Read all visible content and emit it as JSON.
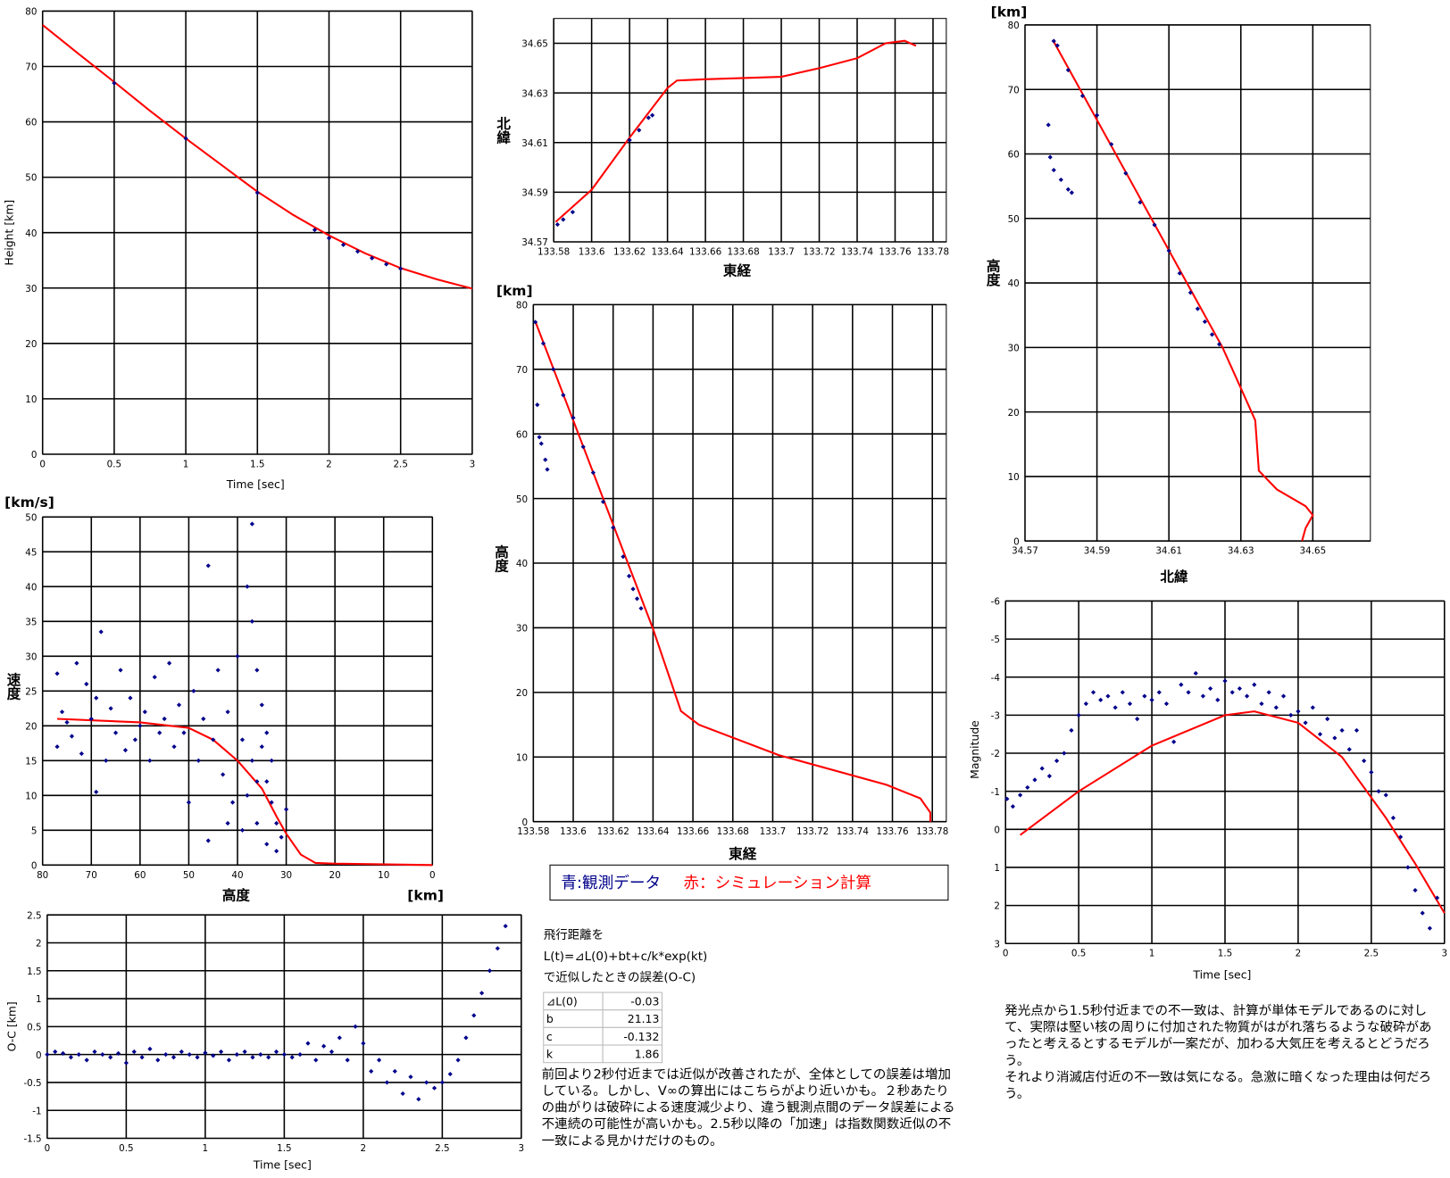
{
  "chart_data": [
    {
      "type": "scatter",
      "xlabel": "Time [sec]",
      "ylabel": "Height [km]",
      "xlim": [
        0,
        3
      ],
      "ylim": [
        0,
        80
      ],
      "xticks": [
        0,
        0.5,
        1,
        1.5,
        2,
        2.5,
        3
      ],
      "yticks": [
        0,
        10,
        20,
        30,
        40,
        50,
        60,
        70,
        80
      ],
      "grid": true,
      "series": [
        {
          "color": "#ff0000",
          "mode": "line",
          "x": [
            0,
            0.25,
            0.5,
            0.75,
            1,
            1.25,
            1.5,
            1.75,
            2,
            2.25,
            2.5,
            2.75,
            3
          ],
          "values": [
            77.5,
            72.3,
            67.2,
            62,
            57,
            52.2,
            47.4,
            43.2,
            39.5,
            36.3,
            33.6,
            31.6,
            29.9
          ]
        },
        {
          "color": "#00008b",
          "mode": "points",
          "x": [
            0.5,
            1,
            1.5,
            1.9,
            2,
            2.1,
            2.2,
            2.3,
            2.4,
            2.5
          ],
          "values": [
            67,
            57,
            47.2,
            40.5,
            39,
            37.8,
            36.6,
            35.4,
            34.3,
            33.5
          ]
        }
      ]
    },
    {
      "type": "scatter",
      "xlabel": "東経",
      "ylabel": "北緯",
      "xlim": [
        133.58,
        133.787
      ],
      "ylim": [
        34.57,
        34.66
      ],
      "xticks": [
        133.58,
        133.6,
        133.62,
        133.64,
        133.66,
        133.68,
        133.7,
        133.72,
        133.74,
        133.76,
        133.78
      ],
      "yticks": [
        34.57,
        34.59,
        34.61,
        34.63,
        34.65
      ],
      "grid": true,
      "series": [
        {
          "color": "#ff0000",
          "mode": "line",
          "x": [
            133.581,
            133.6,
            133.62,
            133.63,
            133.64,
            133.645,
            133.66,
            133.7,
            133.72,
            133.74,
            133.755,
            133.765,
            133.771
          ],
          "values": [
            34.578,
            34.591,
            34.612,
            34.622,
            34.632,
            34.635,
            34.6355,
            34.6365,
            34.64,
            34.644,
            34.65,
            34.651,
            34.649
          ]
        },
        {
          "color": "#00008b",
          "mode": "points",
          "x": [
            133.582,
            133.585,
            133.59,
            133.62,
            133.625,
            133.63,
            133.632
          ],
          "values": [
            34.577,
            34.579,
            34.582,
            34.611,
            34.615,
            34.62,
            34.621
          ]
        }
      ]
    },
    {
      "type": "scatter",
      "xlabel": "北緯",
      "ylabel": "高度",
      "yunit": "[km]",
      "xlim": [
        34.57,
        34.666
      ],
      "ylim": [
        0,
        80
      ],
      "xticks": [
        34.57,
        34.59,
        34.61,
        34.63,
        34.65
      ],
      "yticks": [
        0,
        10,
        20,
        30,
        40,
        50,
        60,
        70,
        80
      ],
      "grid": true,
      "series": [
        {
          "color": "#ff0000",
          "mode": "line",
          "x": [
            34.578,
            34.6249,
            34.63,
            34.634,
            34.635,
            34.64,
            34.648,
            34.65,
            34.648,
            34.647
          ],
          "values": [
            77.4,
            30,
            23.7,
            18.7,
            10.9,
            8,
            5.4,
            4,
            2,
            0
          ]
        },
        {
          "color": "#00008b",
          "mode": "points",
          "x": [
            34.578,
            34.579,
            34.582,
            34.586,
            34.59,
            34.594,
            34.598,
            34.602,
            34.606,
            34.61,
            34.613,
            34.616,
            34.618,
            34.62,
            34.622,
            34.624,
            34.5765,
            34.577,
            34.578,
            34.58,
            34.582,
            34.583
          ],
          "values": [
            77.5,
            76.8,
            73,
            69,
            66,
            61.5,
            57,
            52.5,
            49,
            45,
            41.5,
            38.5,
            36,
            34,
            32,
            30.5,
            64.5,
            59.5,
            57.5,
            56,
            54.5,
            54
          ]
        }
      ]
    },
    {
      "type": "scatter",
      "xlabel": "東経",
      "ylabel": "高度",
      "yunit": "[km]",
      "xlim": [
        133.58,
        133.787
      ],
      "ylim": [
        0,
        80
      ],
      "xticks": [
        133.58,
        133.6,
        133.62,
        133.64,
        133.66,
        133.68,
        133.7,
        133.72,
        133.74,
        133.76,
        133.78
      ],
      "yticks": [
        0,
        10,
        20,
        30,
        40,
        50,
        60,
        70,
        80
      ],
      "grid": true,
      "series": [
        {
          "color": "#ff0000",
          "mode": "line",
          "x": [
            133.581,
            133.6398,
            133.654,
            133.663,
            133.703,
            133.757,
            133.774,
            133.779,
            133.779
          ],
          "values": [
            77.4,
            30,
            17.1,
            15,
            10.3,
            5.7,
            3.6,
            1.4,
            0
          ]
        },
        {
          "color": "#00008b",
          "mode": "points",
          "x": [
            133.581,
            133.585,
            133.59,
            133.595,
            133.6,
            133.605,
            133.61,
            133.615,
            133.62,
            133.625,
            133.628,
            133.63,
            133.632,
            133.634,
            133.582,
            133.583,
            133.584,
            133.586,
            133.587
          ],
          "values": [
            77.3,
            74,
            70,
            66,
            62.5,
            58,
            54,
            49.5,
            45.5,
            41,
            38,
            36,
            34.5,
            33,
            64.5,
            59.5,
            58.5,
            56,
            54.5
          ]
        }
      ]
    },
    {
      "type": "scatter",
      "xlabel": "高度",
      "xunit": "[km]",
      "ylabel": "速度",
      "yunit": "[km/s]",
      "xlim": [
        80,
        0
      ],
      "ylim": [
        0,
        50
      ],
      "xticks": [
        80,
        70,
        60,
        50,
        40,
        30,
        20,
        10,
        0
      ],
      "yticks": [
        0,
        5,
        10,
        15,
        20,
        25,
        30,
        35,
        40,
        45,
        50
      ],
      "grid": true,
      "series": [
        {
          "color": "#ff0000",
          "mode": "line",
          "x": [
            77,
            60,
            50,
            45,
            40,
            35,
            32,
            30,
            27,
            24,
            20,
            0
          ],
          "values": [
            21,
            20.5,
            19.7,
            18,
            15,
            11,
            7,
            4.5,
            1.5,
            0.3,
            0.2,
            0
          ]
        },
        {
          "color": "#00008b",
          "mode": "points",
          "x": [
            77,
            77,
            76,
            75,
            74,
            73,
            72,
            71,
            70,
            69,
            69,
            68,
            67,
            66,
            65,
            64,
            63,
            62,
            61,
            60,
            59,
            58,
            57,
            56,
            55,
            54,
            53,
            52,
            51,
            50,
            49,
            48,
            47,
            46,
            46,
            45,
            44,
            43,
            42,
            41,
            40,
            39,
            38,
            38,
            37,
            37,
            36,
            36,
            35,
            34,
            34,
            33,
            32,
            31,
            30,
            33,
            35,
            39,
            42,
            37,
            36,
            34,
            32
          ],
          "values": [
            27.5,
            17,
            22,
            20.5,
            18.5,
            29,
            16,
            26,
            21,
            24,
            10.5,
            33.5,
            15,
            22.5,
            19,
            28,
            16.5,
            24,
            18,
            20,
            22,
            15,
            27,
            19,
            21,
            29,
            17,
            23,
            19,
            9,
            25,
            15,
            21,
            43,
            3.5,
            18,
            28,
            13,
            22,
            9,
            30,
            18,
            10,
            40,
            49,
            35,
            28,
            6,
            17,
            12,
            3,
            9,
            6,
            4,
            8,
            15,
            23,
            5,
            6,
            15,
            12,
            19,
            2
          ]
        }
      ]
    },
    {
      "type": "scatter",
      "xlabel": "Time [sec]",
      "ylabel": "Magnitude",
      "xlim": [
        0,
        3
      ],
      "ylim": [
        3,
        -6
      ],
      "xticks": [
        0,
        0.5,
        1,
        1.5,
        2,
        2.5,
        3
      ],
      "yticks": [
        -6,
        -5,
        -4,
        -3,
        -2,
        -1,
        0,
        1,
        2,
        3
      ],
      "grid": true,
      "series": [
        {
          "color": "#ff0000",
          "mode": "line",
          "x": [
            0.1,
            0.5,
            1,
            1.5,
            1.7,
            2,
            2.3,
            2.6,
            2.8,
            3
          ],
          "values": [
            0.15,
            -1,
            -2.2,
            -3,
            -3.1,
            -2.8,
            -1.9,
            -0.3,
            0.9,
            2.2
          ]
        },
        {
          "color": "#00008b",
          "mode": "points",
          "x": [
            0.01,
            0.05,
            0.1,
            0.15,
            0.2,
            0.25,
            0.3,
            0.35,
            0.4,
            0.45,
            0.5,
            0.55,
            0.6,
            0.65,
            0.7,
            0.75,
            0.8,
            0.85,
            0.9,
            0.95,
            1,
            1.05,
            1.1,
            1.15,
            1.2,
            1.25,
            1.3,
            1.35,
            1.4,
            1.45,
            1.5,
            1.55,
            1.6,
            1.65,
            1.7,
            1.75,
            1.8,
            1.85,
            1.9,
            1.95,
            2,
            2.05,
            2.1,
            2.15,
            2.2,
            2.25,
            2.3,
            2.35,
            2.4,
            2.45,
            2.5,
            2.55,
            2.6,
            2.65,
            2.7,
            2.75,
            2.8,
            2.85,
            2.9,
            2.95
          ],
          "values": [
            -0.8,
            -0.6,
            -0.9,
            -1.1,
            -1.3,
            -1.6,
            -1.4,
            -1.8,
            -2,
            -2.6,
            -3,
            -3.3,
            -3.6,
            -3.4,
            -3.5,
            -3.2,
            -3.6,
            -3.3,
            -2.9,
            -3.5,
            -3.4,
            -3.6,
            -3.3,
            -2.3,
            -3.8,
            -3.6,
            -4.1,
            -3.5,
            -3.7,
            -3.4,
            -3.9,
            -3.6,
            -3.7,
            -3.5,
            -3.8,
            -3.3,
            -3.6,
            -3.2,
            -3.5,
            -3,
            -3.1,
            -2.8,
            -3.2,
            -2.5,
            -2.9,
            -2.4,
            -2.6,
            -2.1,
            -2.6,
            -1.8,
            -1.5,
            -1,
            -0.9,
            -0.3,
            0.2,
            1,
            1.6,
            2.2,
            2.6,
            1.8
          ]
        }
      ]
    },
    {
      "type": "scatter",
      "xlabel": "Time [sec]",
      "ylabel": "O-C [km]",
      "xlim": [
        0,
        3
      ],
      "ylim": [
        -1.5,
        2.5
      ],
      "xticks": [
        0,
        0.5,
        1,
        1.5,
        2,
        2.5,
        3
      ],
      "yticks": [
        -1.5,
        -1,
        -0.5,
        0,
        0.5,
        1,
        1.5,
        2,
        2.5
      ],
      "grid": true,
      "series": [
        {
          "color": "#00008b",
          "mode": "points",
          "x": [
            0,
            0.05,
            0.1,
            0.15,
            0.2,
            0.25,
            0.3,
            0.35,
            0.4,
            0.45,
            0.5,
            0.55,
            0.6,
            0.65,
            0.7,
            0.75,
            0.8,
            0.85,
            0.9,
            0.95,
            1,
            1.05,
            1.1,
            1.15,
            1.2,
            1.25,
            1.3,
            1.35,
            1.4,
            1.45,
            1.5,
            1.55,
            1.6,
            1.65,
            1.7,
            1.75,
            1.8,
            1.85,
            1.9,
            1.95,
            2,
            2.05,
            2.1,
            2.15,
            2.2,
            2.25,
            2.3,
            2.35,
            2.4,
            2.45,
            2.5,
            2.55,
            2.6,
            2.65,
            2.7,
            2.75,
            2.8,
            2.85,
            2.9
          ],
          "values": [
            0,
            0.05,
            0.02,
            -0.05,
            0,
            -0.1,
            0.05,
            0,
            -0.05,
            0.02,
            -0.15,
            0.05,
            -0.05,
            0.1,
            -0.1,
            0,
            -0.05,
            0.05,
            0,
            -0.05,
            0.03,
            -0.02,
            0.05,
            -0.1,
            0,
            0.05,
            -0.05,
            0,
            -0.05,
            0.05,
            0,
            -0.05,
            0,
            0.2,
            -0.1,
            0.15,
            0.05,
            0.3,
            -0.1,
            0.5,
            0.2,
            -0.3,
            -0.1,
            -0.5,
            -0.3,
            -0.7,
            -0.4,
            -0.8,
            -0.5,
            -0.6,
            -0.5,
            -0.35,
            -0.1,
            0.3,
            0.7,
            1.1,
            1.5,
            1.9,
            2.3
          ]
        }
      ]
    }
  ],
  "legend_box": {
    "observed": "青:観測データ",
    "simulated": "赤：シミュレーション計算"
  },
  "formula": {
    "lines": [
      "飛行距離を",
      "L(t)=⊿L(0)+bt+c/k*exp(kt)",
      "で近似したときの誤差(O-C)"
    ]
  },
  "table": {
    "rows": [
      [
        "⊿L(0)",
        -0.03
      ],
      [
        "b",
        21.13
      ],
      [
        "c",
        -0.132
      ],
      [
        "k",
        1.86
      ]
    ]
  },
  "notes": {
    "left": "前回より2秒付近までは近似が改善されたが、全体としての誤差は増加している。しかし、V∞の算出にはこちらがより近いかも。２秒あたりの曲がりは破砕による速度減少より、違う観測点間のデータ誤差による不連続の可能性が高いかも。2.5秒以降の「加速」は指数関数近似の不一致による見かけだけのもの。",
    "right": [
      "発光点から1.5秒付近までの不一致は、計算が単体モデルであるのに対して、実際は堅い核の周りに付加された物質がはがれ落ちるような破砕があったと考えるとするモデルが一案だが、加わる大気圧を考えるとどうだろう。",
      "それより消滅店付近の不一致は気になる。急激に暗くなった理由は何だろう。"
    ]
  }
}
